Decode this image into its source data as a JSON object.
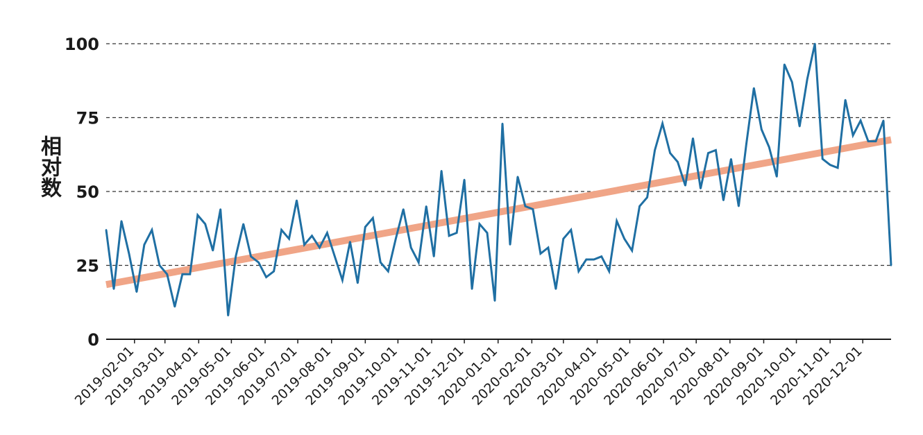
{
  "chart_data": {
    "type": "line",
    "ylabel": "相对数",
    "ylim": [
      0,
      100
    ],
    "yticks": [
      0,
      25,
      50,
      75,
      100
    ],
    "grid": "horizontal-dashed",
    "colors": {
      "series": "#1f6fa3",
      "trend": "#f0a587",
      "grid": "#333333",
      "axis": "#1a1a1a"
    },
    "xtick_labels": [
      "2019-02-01",
      "2019-03-01",
      "2019-04-01",
      "2019-05-01",
      "2019-06-01",
      "2019-07-01",
      "2019-08-01",
      "2019-09-01",
      "2019-10-01",
      "2019-11-01",
      "2019-12-01",
      "2020-01-01",
      "2020-02-01",
      "2020-03-01",
      "2020-04-01",
      "2020-05-01",
      "2020-06-01",
      "2020-07-01",
      "2020-08-01",
      "2020-09-01",
      "2020-10-01",
      "2020-11-01",
      "2020-12-01"
    ],
    "x_start": "2019-01-06",
    "x_step_days": 7,
    "series": [
      {
        "values": [
          37,
          17,
          40,
          29,
          16,
          32,
          37,
          25,
          22,
          11,
          22,
          22,
          42,
          39,
          30,
          44,
          8,
          28,
          39,
          28,
          26,
          21,
          23,
          37,
          34,
          47,
          32,
          35,
          31,
          36,
          28,
          20,
          33,
          19,
          38,
          41,
          26,
          23,
          34,
          44,
          31,
          26,
          45,
          28,
          57,
          35,
          36,
          54,
          17,
          39,
          36,
          13,
          73,
          32,
          55,
          45,
          44,
          29,
          31,
          17,
          34,
          37,
          23,
          27,
          27,
          28,
          23,
          40,
          34,
          30,
          45,
          48,
          64,
          73,
          63,
          60,
          52,
          68,
          51,
          63,
          64,
          47,
          61,
          45,
          66,
          85,
          71,
          65,
          55,
          93,
          87,
          72,
          88,
          100,
          61,
          59,
          58,
          81,
          69,
          74,
          67,
          67,
          74,
          25
        ]
      }
    ],
    "trend": {
      "start": 18.5,
      "end": 67.5
    }
  }
}
